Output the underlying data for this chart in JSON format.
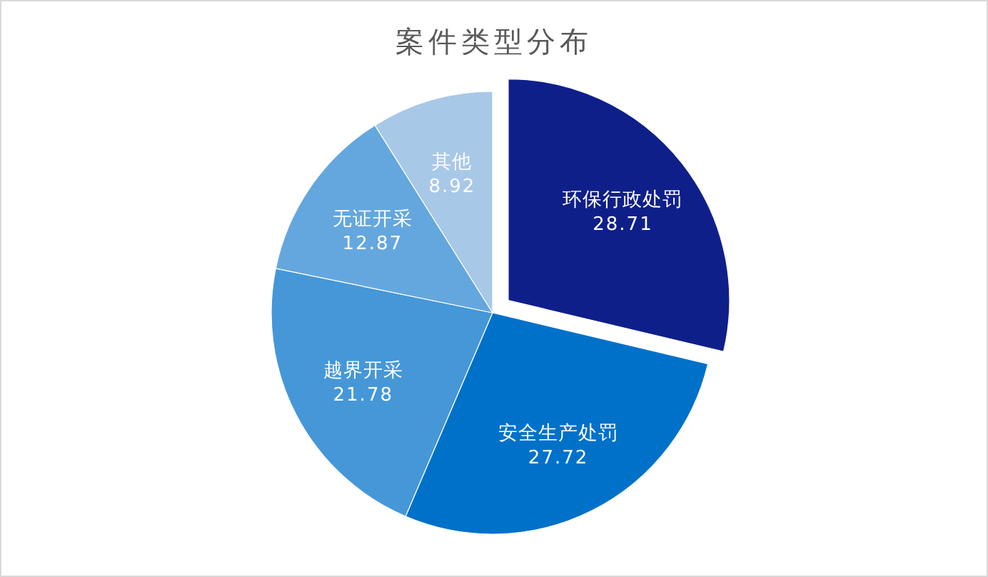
{
  "chart_data": {
    "type": "pie",
    "title": "案件类型分布",
    "categories": [
      "环保行政处罚",
      "安全生产处罚",
      "越界开采",
      "无证开采",
      "其他"
    ],
    "values": [
      28.71,
      27.72,
      21.78,
      12.87,
      8.92
    ],
    "colors": [
      "#0f1f8a",
      "#0071c9",
      "#4597d8",
      "#64a7de",
      "#a8c8e8"
    ],
    "data_labels": true
  }
}
